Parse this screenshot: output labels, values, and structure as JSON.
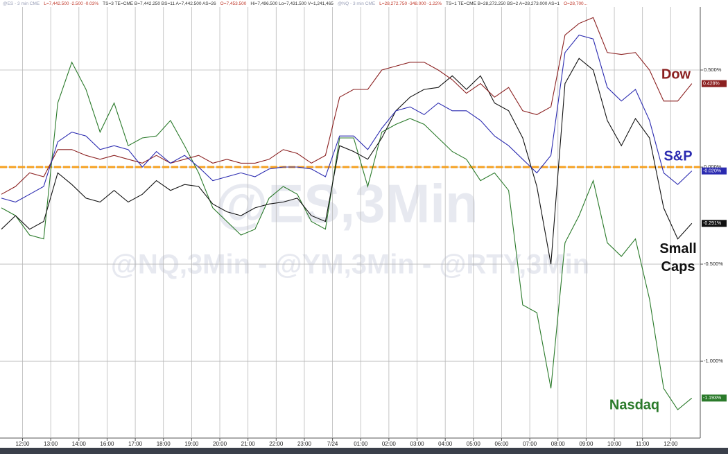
{
  "header": [
    {
      "text": "@ES - 3 min  CME",
      "color": "#9aa0b8"
    },
    {
      "text": "L=7,442.500  -2.500  -0.03%",
      "color": "#c0392b"
    },
    {
      "text": "TS=3  TE=CME  B=7,442.250  BS=11  A=7,442.500  AS=26",
      "color": "#333333"
    },
    {
      "text": "O=7,453.500",
      "color": "#c0392b"
    },
    {
      "text": "Hi=7,496.500  Lo=7,431.500  V=1,241,465",
      "color": "#333333"
    },
    {
      "text": "@NQ - 3 min  CME",
      "color": "#9aa0b8"
    },
    {
      "text": "L=28,272.750  -348.000  -1.22%",
      "color": "#c0392b"
    },
    {
      "text": "TS=1  TE=CME  B=28,272.250  BS=2  A=28,273.000  AS=1",
      "color": "#333333"
    },
    {
      "text": "O=28,700...",
      "color": "#c0392b"
    }
  ],
  "watermarks": [
    "@ES,3Min",
    "@NQ,3Min - @YM,3Min - @RTY,3Min"
  ],
  "chart_data": {
    "type": "line",
    "x": [
      -0.75,
      -0.25,
      0.25,
      0.75,
      1.25,
      1.75,
      2.25,
      2.75,
      3.25,
      3.75,
      4.25,
      4.75,
      5.25,
      5.75,
      6.25,
      6.75,
      7.25,
      7.75,
      8.25,
      8.75,
      9.25,
      9.75,
      10.25,
      10.75,
      11.25,
      11.75,
      12.25,
      12.75,
      13.25,
      13.75,
      14.25,
      14.75,
      15.25,
      15.75,
      16.25,
      16.75,
      17.25,
      17.75,
      18.25,
      18.75,
      19.25,
      19.75,
      20.25,
      20.75,
      21.25,
      21.75,
      22.25,
      22.75,
      23.25,
      23.75
    ],
    "xlim": [
      -0.8,
      24.05
    ],
    "xticks": [
      {
        "value": 0,
        "label": "12:00"
      },
      {
        "value": 1,
        "label": "13:00"
      },
      {
        "value": 2,
        "label": "14:00"
      },
      {
        "value": 3,
        "label": "16:00"
      },
      {
        "value": 4,
        "label": "17:00"
      },
      {
        "value": 5,
        "label": "18:00"
      },
      {
        "value": 6,
        "label": "19:00"
      },
      {
        "value": 7,
        "label": "20:00"
      },
      {
        "value": 8,
        "label": "21:00"
      },
      {
        "value": 9,
        "label": "22:00"
      },
      {
        "value": 10,
        "label": "23:00"
      },
      {
        "value": 11,
        "label": "7/24"
      },
      {
        "value": 12,
        "label": "01:00"
      },
      {
        "value": 13,
        "label": "02:00"
      },
      {
        "value": 14,
        "label": "03:00"
      },
      {
        "value": 15,
        "label": "04:00"
      },
      {
        "value": 16,
        "label": "05:00"
      },
      {
        "value": 17,
        "label": "06:00"
      },
      {
        "value": 18,
        "label": "07:00"
      },
      {
        "value": 19,
        "label": "08:00"
      },
      {
        "value": 20,
        "label": "09:00"
      },
      {
        "value": 21,
        "label": "10:00"
      },
      {
        "value": 22,
        "label": "11:00"
      },
      {
        "value": 23,
        "label": "12:00"
      }
    ],
    "ylim": [
      -1.396,
      0.825
    ],
    "yticks": [
      {
        "value": 0.5,
        "label": "0.500%"
      },
      {
        "value": 0,
        "label": "0.000%"
      },
      {
        "value": -0.5,
        "label": "-0.500%"
      },
      {
        "value": -1,
        "label": "-1.000%"
      }
    ],
    "grid": true,
    "reference_line": {
      "value": 0,
      "color": "#f5a020"
    },
    "series": [
      {
        "name": "Dow",
        "color": "#8b2020",
        "last_label": "0.428%",
        "values": [
          -0.14,
          -0.1,
          -0.03,
          -0.05,
          0.09,
          0.09,
          0.06,
          0.04,
          0.06,
          0.04,
          0.02,
          0.06,
          0.02,
          0.04,
          0.06,
          0.02,
          0.04,
          0.02,
          0.02,
          0.04,
          0.09,
          0.07,
          0.02,
          0.06,
          0.36,
          0.4,
          0.4,
          0.5,
          0.52,
          0.54,
          0.54,
          0.5,
          0.45,
          0.38,
          0.43,
          0.36,
          0.41,
          0.29,
          0.27,
          0.31,
          0.68,
          0.74,
          0.77,
          0.59,
          0.58,
          0.59,
          0.5,
          0.34,
          0.34,
          0.43
        ]
      },
      {
        "name": "S&P",
        "color": "#2a2ab0",
        "last_label": "-0.020%",
        "values": [
          -0.16,
          -0.18,
          -0.14,
          -0.1,
          0.13,
          0.18,
          0.16,
          0.09,
          0.11,
          0.09,
          0.0,
          0.08,
          0.02,
          0.06,
          0.0,
          -0.07,
          -0.05,
          -0.03,
          -0.05,
          -0.01,
          0.0,
          0.0,
          -0.01,
          -0.05,
          0.16,
          0.16,
          0.09,
          0.2,
          0.29,
          0.31,
          0.27,
          0.33,
          0.29,
          0.29,
          0.24,
          0.16,
          0.11,
          0.04,
          -0.03,
          0.06,
          0.59,
          0.68,
          0.66,
          0.41,
          0.34,
          0.4,
          0.24,
          -0.03,
          -0.09,
          -0.02
        ]
      },
      {
        "name": "Small Caps",
        "color": "#111111",
        "last_label": "-0.291%",
        "values": [
          -0.32,
          -0.25,
          -0.32,
          -0.28,
          -0.03,
          -0.09,
          -0.16,
          -0.18,
          -0.12,
          -0.18,
          -0.14,
          -0.07,
          -0.12,
          -0.09,
          -0.1,
          -0.19,
          -0.23,
          -0.25,
          -0.21,
          -0.19,
          -0.18,
          -0.16,
          -0.25,
          -0.28,
          0.11,
          0.08,
          0.04,
          0.15,
          0.29,
          0.36,
          0.4,
          0.41,
          0.47,
          0.4,
          0.47,
          0.33,
          0.29,
          0.15,
          -0.1,
          -0.5,
          0.43,
          0.56,
          0.5,
          0.24,
          0.11,
          0.25,
          0.15,
          -0.21,
          -0.37,
          -0.29
        ]
      },
      {
        "name": "Nasdaq",
        "color": "#2a7a2a",
        "last_label": "-1.193%",
        "values": [
          -0.21,
          -0.25,
          -0.35,
          -0.37,
          0.33,
          0.54,
          0.4,
          0.18,
          0.33,
          0.11,
          0.15,
          0.16,
          0.24,
          0.11,
          -0.03,
          -0.21,
          -0.28,
          -0.35,
          -0.32,
          -0.16,
          -0.1,
          -0.14,
          -0.28,
          -0.32,
          0.15,
          0.15,
          -0.1,
          0.18,
          0.22,
          0.25,
          0.22,
          0.15,
          0.08,
          0.04,
          -0.07,
          -0.03,
          -0.12,
          -0.71,
          -0.75,
          -1.14,
          -0.39,
          -0.25,
          -0.07,
          -0.39,
          -0.46,
          -0.37,
          -0.68,
          -1.14,
          -1.25,
          -1.19
        ]
      }
    ]
  }
}
